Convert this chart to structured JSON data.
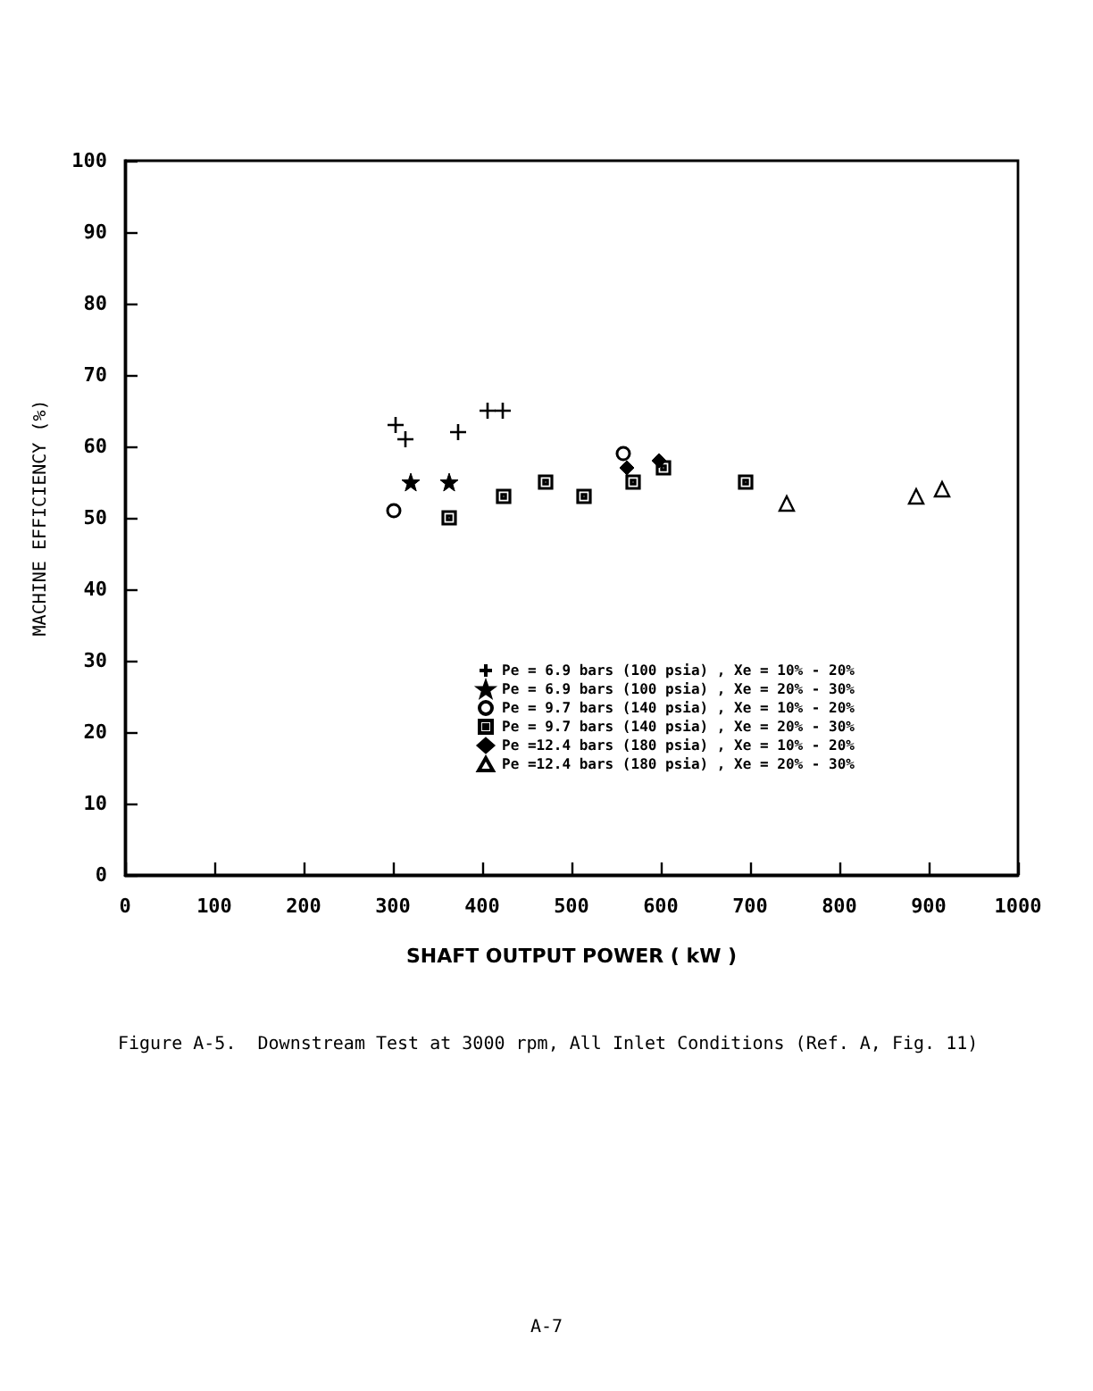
{
  "chart_data": {
    "type": "scatter",
    "xlabel": "SHAFT OUTPUT POWER ( kW )",
    "ylabel": "MACHINE EFFICIENCY (%)",
    "annotations": [
      "Figure A-5.  Downstream Test at 3000 rpm, All Inlet Conditions (Ref. A, Fig. 11)",
      "A-7"
    ],
    "xlim": [
      0,
      1000
    ],
    "xticks": [
      0,
      100,
      200,
      300,
      400,
      500,
      600,
      700,
      800,
      900,
      1000
    ],
    "ylim": [
      0,
      100
    ],
    "yticks": [
      0,
      10,
      20,
      30,
      40,
      50,
      60,
      70,
      80,
      90,
      100
    ],
    "grid": false,
    "legend": "bottom right",
    "series": [
      {
        "name": "Pe = 6.9 bars (100 psia) , Xe = 10% - 20%",
        "color": "#000000",
        "marker": "cross",
        "x": [
          423,
          406,
          373,
          314,
          303
        ],
        "values": [
          65,
          65,
          62,
          61,
          63
        ]
      },
      {
        "name": "Pe = 6.9 bars (100 psia) , Xe = 20% - 30%",
        "color": "#000000",
        "marker": "star",
        "x": [
          363,
          320
        ],
        "values": [
          55,
          55
        ]
      },
      {
        "name": "Pe = 9.7 bars (140 psia) , Xe = 10% - 20%",
        "color": "#000000",
        "marker": "circle",
        "x": [
          301,
          558
        ],
        "values": [
          51,
          59
        ]
      },
      {
        "name": "Pe = 9.7 bars (140 psia) , Xe = 20% - 30%",
        "color": "#000000",
        "marker": "square",
        "x": [
          603,
          569,
          695,
          514,
          471,
          424,
          363
        ],
        "values": [
          57,
          55,
          55,
          53,
          55,
          53,
          50
        ]
      },
      {
        "name": "Pe =12.4 bars (180 psia) , Xe = 10% - 20%",
        "color": "#000000",
        "marker": "diamond",
        "x": [
          598,
          562
        ],
        "values": [
          58,
          57
        ]
      },
      {
        "name": "Pe =12.4 bars (180 psia) , Xe = 20% - 30%",
        "color": "#000000",
        "marker": "triangle",
        "x": [
          915,
          886,
          741
        ],
        "values": [
          54,
          53,
          52
        ]
      }
    ]
  }
}
